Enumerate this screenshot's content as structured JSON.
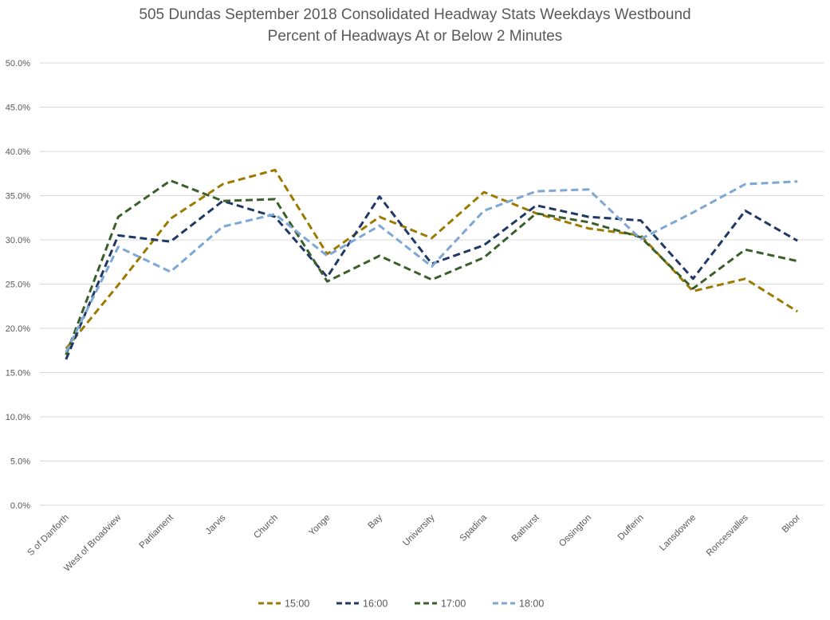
{
  "chart_data": {
    "type": "line",
    "title": "505 Dundas   September 2018  Consolidated Headway Stats Weekdays Westbound",
    "subtitle": "Percent of Headways At or Below 2 Minutes",
    "xlabel": "",
    "ylabel": "",
    "ylim": [
      0,
      50
    ],
    "yticks": [
      "0.0%",
      "5.0%",
      "10.0%",
      "15.0%",
      "20.0%",
      "25.0%",
      "30.0%",
      "35.0%",
      "40.0%",
      "45.0%",
      "50.0%"
    ],
    "grid": true,
    "legend_position": "bottom",
    "categories": [
      "S of Danforth",
      "West of Broadview",
      "Parliament",
      "Jarvis",
      "Church",
      "Yonge",
      "Bay",
      "University",
      "Spadina",
      "Bathurst",
      "Ossington",
      "Dufferin",
      "Lansdowne",
      "Roncesvalles",
      "Bloor"
    ],
    "series": [
      {
        "name": "15:00",
        "color": "#9C7A00",
        "values": [
          17.7,
          24.9,
          32.4,
          36.3,
          37.9,
          28.4,
          32.6,
          30.2,
          35.4,
          33.0,
          31.3,
          30.5,
          24.2,
          25.6,
          21.9
        ]
      },
      {
        "name": "16:00",
        "color": "#203864",
        "values": [
          16.5,
          30.5,
          29.8,
          34.4,
          32.6,
          25.8,
          34.9,
          27.3,
          29.4,
          33.9,
          32.6,
          32.2,
          25.6,
          33.3,
          29.9
        ]
      },
      {
        "name": "17:00",
        "color": "#3A5F2A",
        "values": [
          17.0,
          32.6,
          36.7,
          34.4,
          34.6,
          25.3,
          28.2,
          25.5,
          28.0,
          33.0,
          32.0,
          30.3,
          24.5,
          28.9,
          27.6
        ]
      },
      {
        "name": "18:00",
        "color": "#7DA7D4",
        "values": [
          17.3,
          29.2,
          26.4,
          31.5,
          32.9,
          28.2,
          31.6,
          27.0,
          33.3,
          35.5,
          35.7,
          30.1,
          33.1,
          36.3,
          36.6
        ]
      }
    ]
  }
}
